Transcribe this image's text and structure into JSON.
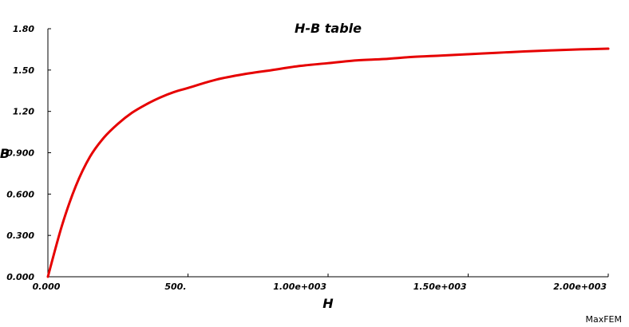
{
  "chart_data": {
    "type": "line",
    "title": "H-B table",
    "xlabel": "H",
    "ylabel": "B",
    "xlim": [
      0,
      2000
    ],
    "ylim": [
      0,
      1.8
    ],
    "x_ticks": [
      0,
      500,
      1000,
      1500,
      2000
    ],
    "x_tick_labels": [
      "0.000",
      "500.",
      "1.00e+003",
      "1.50e+003",
      "2.00e+003"
    ],
    "y_ticks": [
      0,
      0.3,
      0.6,
      0.9,
      1.2,
      1.5,
      1.8
    ],
    "y_tick_labels": [
      "0.000",
      "0.300",
      "0.600",
      "0.900",
      "1.20",
      "1.50",
      "1.80"
    ],
    "grid": false,
    "series": [
      {
        "color": "#e60000",
        "x": [
          0,
          50,
          100,
          150,
          200,
          250,
          300,
          350,
          400,
          450,
          500,
          600,
          700,
          800,
          900,
          1000,
          1100,
          1200,
          1300,
          1400,
          1500,
          1600,
          1700,
          1800,
          1900,
          2000
        ],
        "y": [
          0,
          0.37,
          0.66,
          0.87,
          1.01,
          1.11,
          1.19,
          1.25,
          1.3,
          1.34,
          1.37,
          1.43,
          1.47,
          1.5,
          1.53,
          1.55,
          1.57,
          1.58,
          1.595,
          1.605,
          1.615,
          1.625,
          1.635,
          1.643,
          1.65,
          1.655
        ]
      }
    ]
  },
  "footer": {
    "watermark": "MaxFEM"
  }
}
